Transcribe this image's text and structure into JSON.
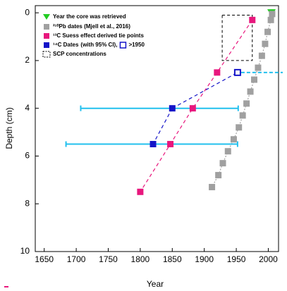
{
  "chart_data": {
    "type": "scatter",
    "x_label": "Year",
    "y_label": "Depth (cm)",
    "xlim": [
      1636,
      2016
    ],
    "ylim": [
      10,
      -0.3
    ],
    "xticks": [
      1650,
      1700,
      1750,
      1800,
      1850,
      1900,
      1950,
      2000
    ],
    "yticks": [
      0,
      2,
      4,
      6,
      8,
      10
    ],
    "series": [
      {
        "name": "Year the core was retrieved",
        "color": "#22cc22",
        "marker": "triangle",
        "line": "none",
        "x": [
          2005
        ],
        "values": [
          0
        ]
      },
      {
        "name": "²¹⁰Pb dates (Mjell et al., 2016)",
        "color": "#a0a0a0",
        "marker": "square",
        "line": "dotted",
        "x": [
          2006,
          2004,
          1999,
          1995,
          1990,
          1984,
          1978,
          1972,
          1966,
          1960,
          1954,
          1946,
          1937,
          1929,
          1922,
          1912
        ],
        "values": [
          0.05,
          0.3,
          0.8,
          1.3,
          1.8,
          2.3,
          2.8,
          3.3,
          3.8,
          4.3,
          4.8,
          5.3,
          5.8,
          6.3,
          6.8,
          7.3
        ]
      },
      {
        "name": "¹³C Suess effect derived tie points",
        "color": "#e8177d",
        "marker": "square",
        "line": "dashed",
        "x": [
          1975,
          1920,
          1882,
          1847,
          1800
        ],
        "values": [
          0.3,
          2.5,
          4.0,
          5.5,
          7.5
        ]
      },
      {
        "name": "¹⁴C Dates",
        "color": "#1414c8",
        "marker": "square",
        "line": "dashed",
        "x": [
          1850,
          1820
        ],
        "values": [
          4.0,
          5.5
        ],
        "ci_low": [
          1707,
          1684
        ],
        "ci_high": [
          1953,
          1952
        ],
        "ci_color": "#22c0ee",
        "ci_label": "(with 95% CI),"
      },
      {
        "name": ">1950",
        "color": "#1414c8",
        "marker": "open-square",
        "line": "none",
        "x": [
          1952
        ],
        "values": [
          2.5
        ]
      }
    ],
    "scp": {
      "name": "SCP concentrations",
      "x": [
        1928,
        1975
      ],
      "y": [
        0.1,
        2.0
      ]
    }
  }
}
